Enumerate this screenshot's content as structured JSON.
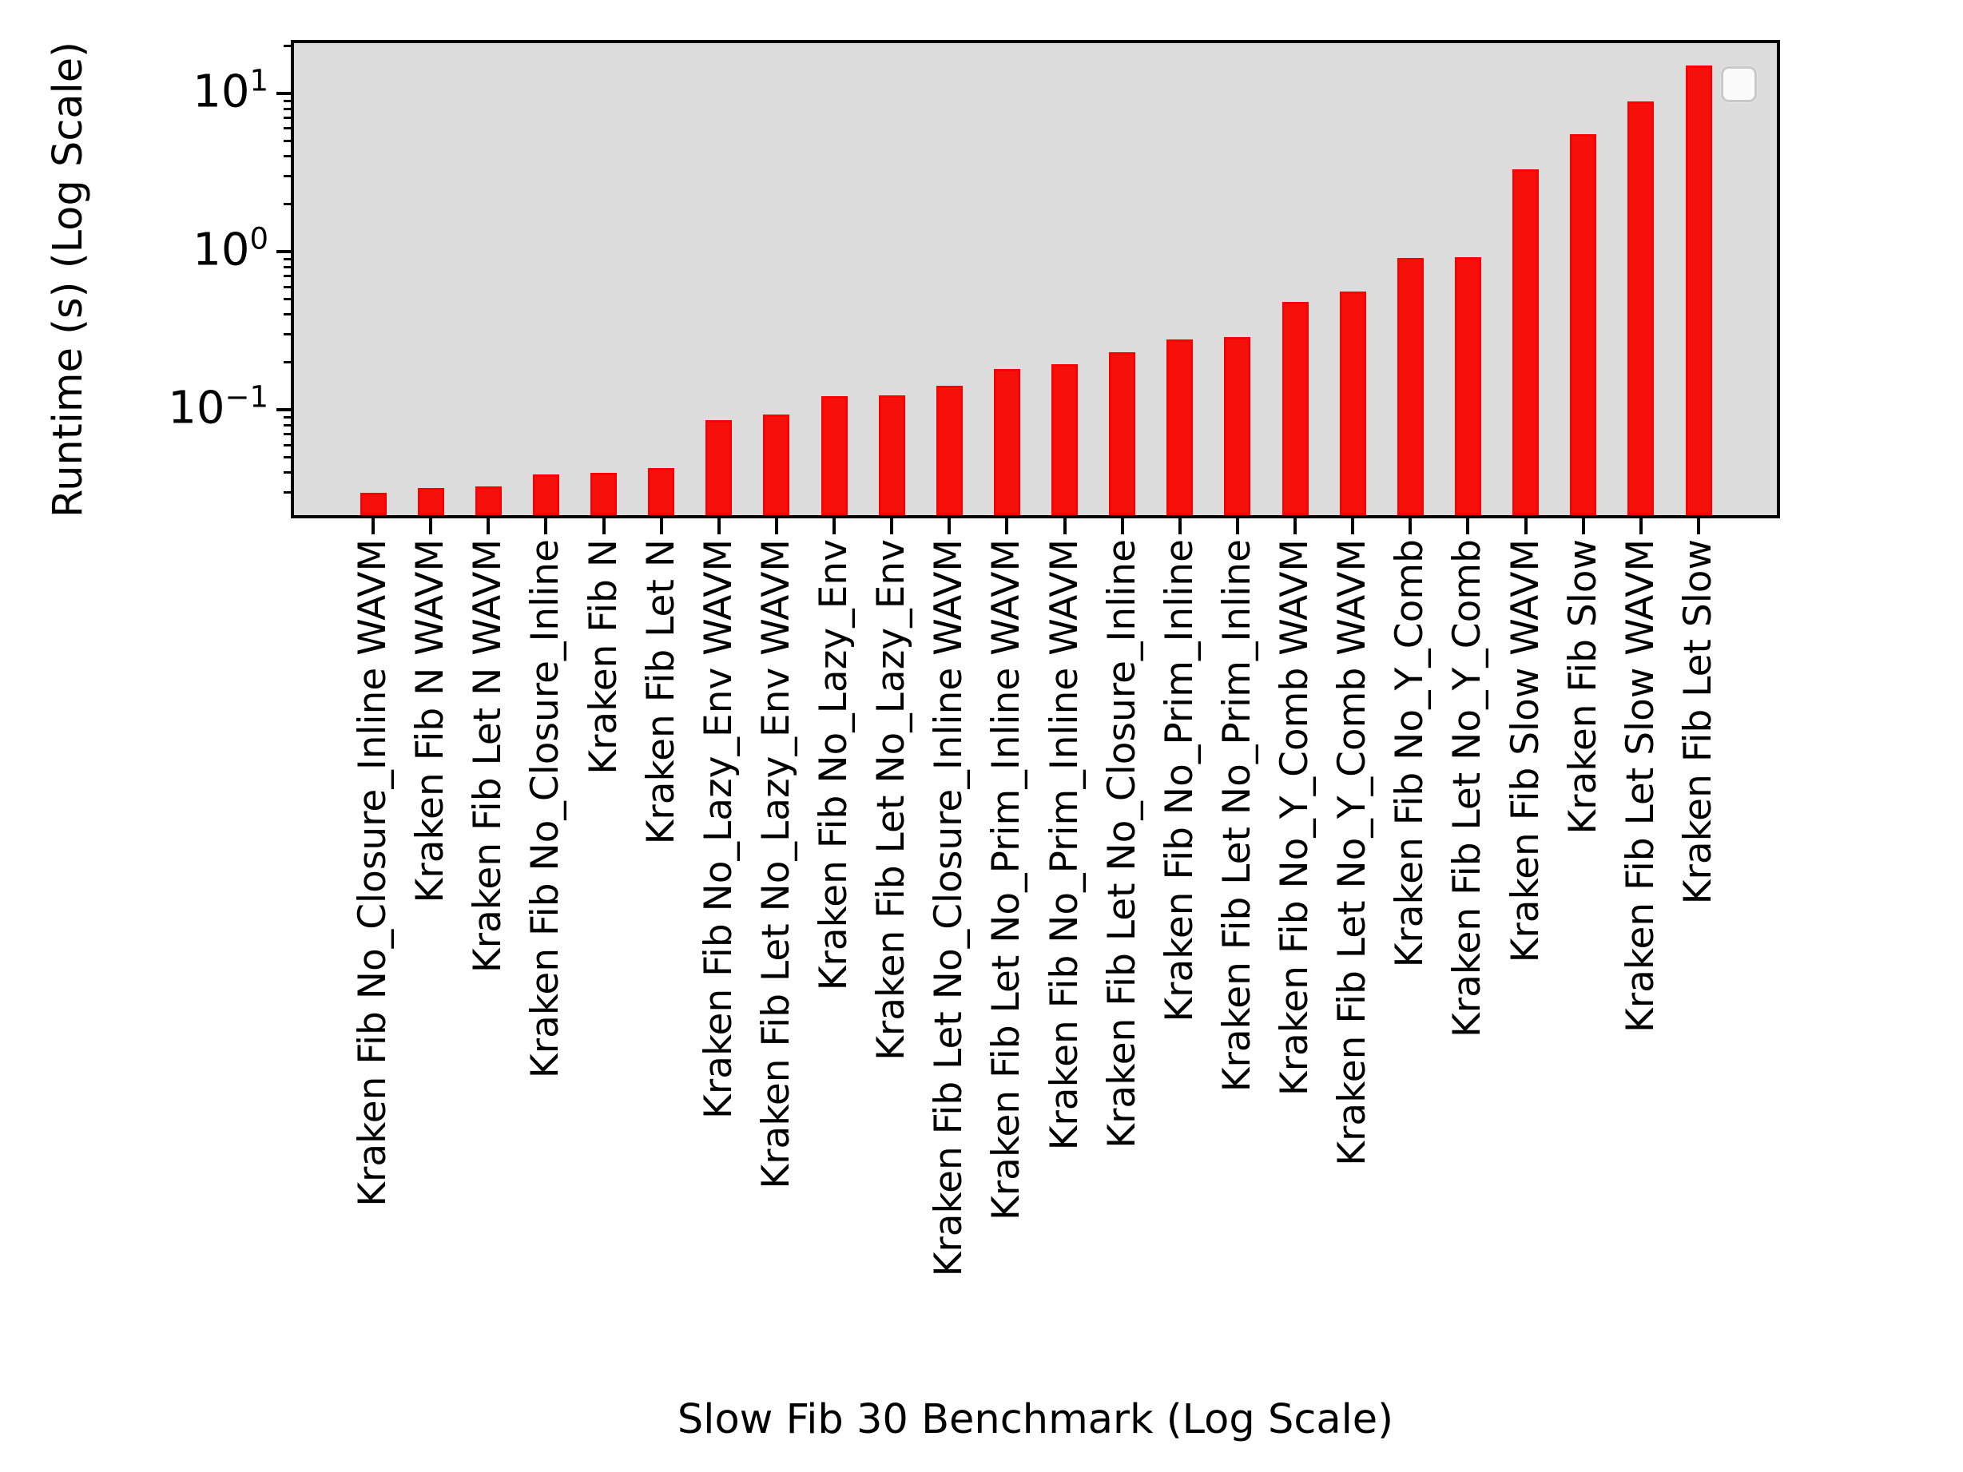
{
  "chart_data": {
    "type": "bar",
    "title": "",
    "xlabel": "Slow Fib 30 Benchmark (Log Scale)",
    "ylabel": "Runtime (s) (Log Scale)",
    "yscale": "log",
    "ylim": [
      0.0216,
      20.8
    ],
    "grid": false,
    "legend_position": "upper right",
    "legend_entries": [],
    "categories": [
      "Kraken Fib No_Closure_Inline WAVM",
      "Kraken Fib N WAVM",
      "Kraken Fib Let N WAVM",
      "Kraken Fib No_Closure_Inline",
      "Kraken Fib N",
      "Kraken Fib Let N",
      "Kraken Fib No_Lazy_Env WAVM",
      "Kraken Fib Let No_Lazy_Env WAVM",
      "Kraken Fib No_Lazy_Env",
      "Kraken Fib Let No_Lazy_Env",
      "Kraken Fib Let No_Closure_Inline WAVM",
      "Kraken Fib Let No_Prim_Inline WAVM",
      "Kraken Fib No_Prim_Inline WAVM",
      "Kraken Fib Let No_Closure_Inline",
      "Kraken Fib No_Prim_Inline",
      "Kraken Fib Let No_Prim_Inline",
      "Kraken Fib No_Y_Comb WAVM",
      "Kraken Fib Let No_Y_Comb WAVM",
      "Kraken Fib No_Y_Comb",
      "Kraken Fib Let No_Y_Comb",
      "Kraken Fib Slow WAVM",
      "Kraken Fib Slow",
      "Kraken Fib Let Slow WAVM",
      "Kraken Fib Let Slow"
    ],
    "values": [
      0.03,
      0.032,
      0.033,
      0.039,
      0.04,
      0.043,
      0.086,
      0.093,
      0.122,
      0.124,
      0.142,
      0.182,
      0.194,
      0.232,
      0.278,
      0.289,
      0.484,
      0.559,
      0.908,
      0.922,
      3.3,
      5.5,
      8.9,
      15.0
    ],
    "ytick_base": "10",
    "yticks": [
      {
        "value": 0.1,
        "exponent": "−1"
      },
      {
        "value": 1,
        "exponent": "0"
      },
      {
        "value": 10,
        "exponent": "1"
      }
    ],
    "colors": {
      "bar_face": "#F6100B",
      "bar_edge": "#FF0000",
      "plot_background": "#DCDCDC",
      "axis": "#000000",
      "legend_background": "#FBFBFB",
      "legend_border": "#C9C9C9"
    }
  }
}
